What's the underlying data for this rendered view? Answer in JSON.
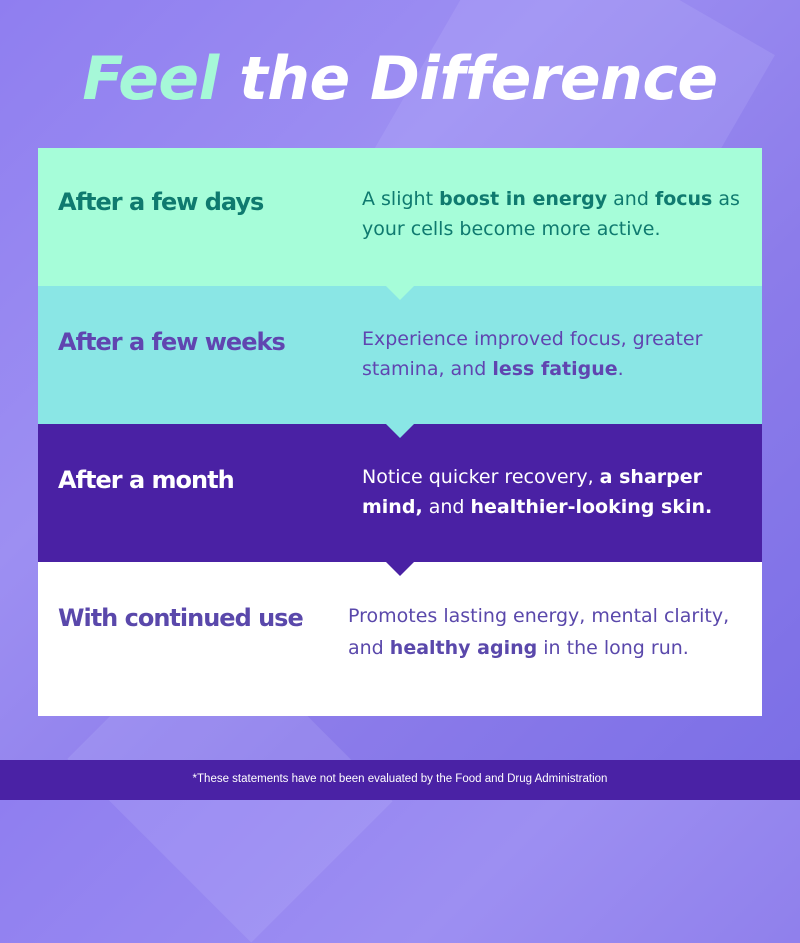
{
  "title": {
    "accent": "Feel",
    "rest": " the Difference"
  },
  "rows": [
    {
      "heading": "After a few days",
      "desc": [
        {
          "t": "A slight ",
          "b": false
        },
        {
          "t": "boost in energy",
          "b": true
        },
        {
          "t": " and ",
          "b": false
        },
        {
          "t": "focus",
          "b": true
        },
        {
          "t": " as your cells become more active.",
          "b": false
        }
      ]
    },
    {
      "heading": "After a few weeks",
      "desc": [
        {
          "t": "Experience improved focus, greater stamina, and ",
          "b": false
        },
        {
          "t": "less fatigue",
          "b": true
        },
        {
          "t": ".",
          "b": false
        }
      ]
    },
    {
      "heading": "After a month",
      "desc": [
        {
          "t": "Notice quicker recovery, ",
          "b": false
        },
        {
          "t": "a sharper mind,",
          "b": true
        },
        {
          "t": " and ",
          "b": false
        },
        {
          "t": "healthier-looking skin.",
          "b": true
        }
      ]
    },
    {
      "heading": "With continued use",
      "desc": [
        {
          "t": "Promotes lasting energy, mental clarity, and ",
          "b": false
        },
        {
          "t": "healthy aging",
          "b": true
        },
        {
          "t": " in the long run.",
          "b": false
        }
      ]
    }
  ],
  "colors": {
    "row1": "#a6fdd9",
    "row2": "#8ae6e5",
    "row3": "#4a21a4",
    "row4": "#ffffff",
    "accent": "#a6f8d8",
    "footer": "#4a22a5"
  },
  "footer": {
    "disclaimer": "*These statements have not been evaluated by the Food and Drug Administration"
  }
}
